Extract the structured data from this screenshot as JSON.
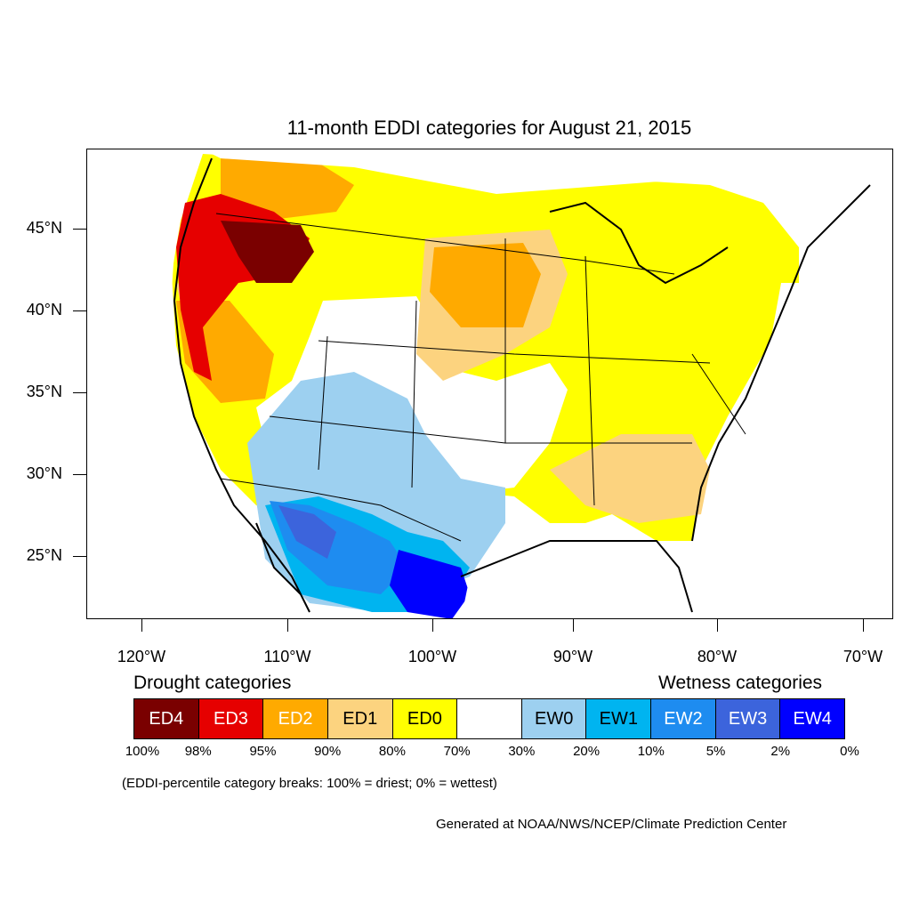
{
  "title": "11-month EDDI categories for August 21, 2015",
  "lat_labels": [
    "45°N",
    "40°N",
    "35°N",
    "30°N",
    "25°N"
  ],
  "lon_labels": [
    "120°W",
    "110°W",
    "100°W",
    "90°W",
    "80°W",
    "70°W"
  ],
  "legend": {
    "drought_heading": "Drought categories",
    "wetness_heading": "Wetness categories",
    "categories": [
      {
        "label": "ED4",
        "color": "#7a0000",
        "text_color": "#ffffff"
      },
      {
        "label": "ED3",
        "color": "#e60000",
        "text_color": "#ffffff"
      },
      {
        "label": "ED2",
        "color": "#ffaa00",
        "text_color": "#ffffff"
      },
      {
        "label": "ED1",
        "color": "#fcd37f",
        "text_color": "#000000"
      },
      {
        "label": "ED0",
        "color": "#ffff00",
        "text_color": "#000000"
      },
      {
        "label": "",
        "color": "#ffffff",
        "text_color": "#000000"
      },
      {
        "label": "EW0",
        "color": "#9dd0f0",
        "text_color": "#000000"
      },
      {
        "label": "EW1",
        "color": "#00b4f0",
        "text_color": "#000000"
      },
      {
        "label": "EW2",
        "color": "#1e8cf0",
        "text_color": "#ffffff"
      },
      {
        "label": "EW3",
        "color": "#3c64dc",
        "text_color": "#ffffff"
      },
      {
        "label": "EW4",
        "color": "#0000ff",
        "text_color": "#ffffff"
      }
    ],
    "percentiles": [
      "100%",
      "98%",
      "95%",
      "90%",
      "80%",
      "70%",
      "30%",
      "20%",
      "10%",
      "5%",
      "2%",
      "0%"
    ]
  },
  "note": "(EDDI-percentile category breaks: 100% = driest; 0% = wettest)",
  "credit": "Generated at NOAA/NWS/NCEP/Climate Prediction Center"
}
